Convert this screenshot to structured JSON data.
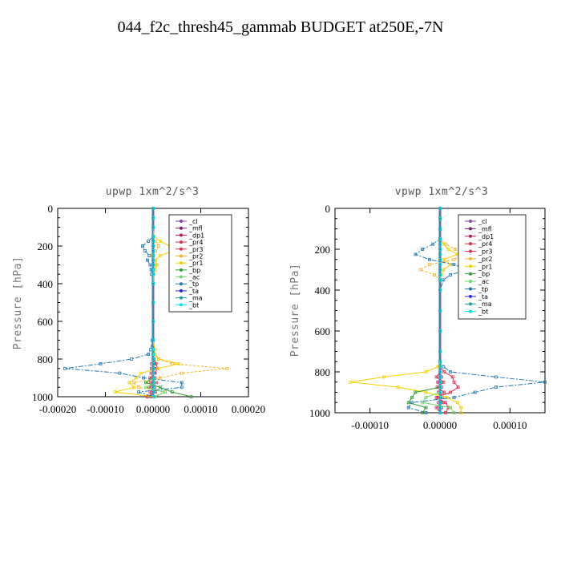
{
  "figure_title": "044_f2c_thresh45_gammab  BUDGET at250E,-7N",
  "colors": {
    "_cl": "#8e44ad",
    "_mfl": "#7a1f6f",
    "_dp1": "#c0185c",
    "_pr4": "#d9304a",
    "_pr3": "#e8304a",
    "_pr2": "#f7b32b",
    "_pr1": "#f5d000",
    "_bp": "#2e9e2e",
    "_ac": "#6cd96c",
    "_tp": "#1f78b4",
    "_ta": "#2b2bd9",
    "_ma": "#1aa0a0",
    "_bt": "#00e5ee"
  },
  "chart_data": [
    {
      "type": "line",
      "title": "upwp  1xm^2/s^3",
      "ylabel": "Pressure [hPa]",
      "xlabel": "",
      "xlim": [
        -0.0002,
        0.0002
      ],
      "ylim": [
        1000,
        0
      ],
      "xticks": [
        "-0.00020",
        "-0.00010",
        "0.00000",
        "0.00010",
        "0.00020"
      ],
      "xtick_values": [
        -0.0002,
        -0.0001,
        0,
        0.0001,
        0.0002
      ],
      "yticks": [
        "0",
        "200",
        "400",
        "600",
        "800",
        "1000"
      ],
      "ytick_values": [
        0,
        200,
        400,
        600,
        800,
        1000
      ],
      "legend": [
        "_cl",
        "_mfl",
        "_dp1",
        "_pr4",
        "_pr3",
        "_pr2",
        "_pr1",
        "_bp",
        "_ac",
        "_tp",
        "_ta",
        "_ma",
        "_bt"
      ],
      "legend_position": "top-right",
      "pressure": [
        0,
        50,
        100,
        150,
        175,
        200,
        225,
        250,
        275,
        300,
        325,
        350,
        400,
        500,
        600,
        700,
        750,
        775,
        800,
        825,
        850,
        875,
        900,
        925,
        950,
        975,
        1000
      ],
      "series": [
        {
          "name": "_cl",
          "values": [
            0,
            0,
            0,
            0,
            0,
            0,
            0,
            0,
            0,
            0,
            0,
            0,
            0,
            0,
            0,
            0,
            0,
            0,
            0,
            0,
            0,
            0,
            0,
            0,
            0,
            0,
            0
          ]
        },
        {
          "name": "_mfl",
          "values": [
            0,
            0,
            0,
            0,
            0,
            0,
            0,
            0,
            0,
            0,
            0,
            0,
            0,
            0,
            0,
            0,
            0,
            0,
            0,
            0,
            0,
            0,
            0,
            0,
            0,
            0,
            0
          ]
        },
        {
          "name": "_dp1",
          "values": [
            0,
            0,
            0,
            0,
            0,
            0,
            0,
            0,
            0,
            0,
            0,
            0,
            0,
            0,
            0,
            0,
            0,
            0,
            0,
            2e-06,
            -3e-06,
            3e-06,
            -2e-06,
            2e-06,
            -3e-06,
            2e-06,
            -1e-06
          ]
        },
        {
          "name": "_pr4",
          "values": [
            0,
            0,
            0,
            0,
            0,
            0,
            0,
            0,
            0,
            0,
            0,
            0,
            0,
            0,
            0,
            0,
            0,
            0,
            0,
            -3e-06,
            5e-06,
            -4e-06,
            4e-06,
            -5e-06,
            3e-06,
            -6e-06,
            -4e-06
          ]
        },
        {
          "name": "_pr3",
          "values": [
            0,
            0,
            0,
            0,
            0,
            0,
            0,
            0,
            0,
            0,
            0,
            0,
            0,
            0,
            0,
            0,
            0,
            0,
            2e-06,
            6e-06,
            9e-06,
            4e-06,
            -6e-06,
            7e-06,
            -8e-06,
            5e-06,
            -1.2e-05
          ]
        },
        {
          "name": "_pr2",
          "values": [
            0,
            0,
            0,
            0,
            5e-06,
            1.2e-05,
            5e-06,
            -2e-06,
            3e-06,
            6e-06,
            2e-06,
            0,
            0,
            0,
            0,
            0,
            2e-06,
            4e-06,
            1.2e-05,
            4e-05,
            0.000155,
            6e-05,
            1.5e-05,
            -4e-05,
            -3e-05,
            2.5e-05,
            0
          ]
        },
        {
          "name": "_pr1",
          "values": [
            0,
            0,
            0,
            2e-06,
            1.5e-05,
            3.5e-05,
            4.5e-05,
            1.5e-05,
            5e-06,
            8e-06,
            4e-06,
            2e-06,
            0,
            0,
            0,
            0,
            4e-06,
            2e-06,
            1.2e-05,
            5.5e-05,
            1e-05,
            -2.5e-05,
            -3.5e-05,
            -5e-05,
            -4e-05,
            -8e-05,
            0
          ]
        },
        {
          "name": "_bp",
          "values": [
            0,
            0,
            0,
            0,
            0,
            0,
            0,
            0,
            0,
            0,
            0,
            0,
            0,
            0,
            0,
            0,
            0,
            0,
            0,
            0,
            0,
            0,
            0,
            -1.5e-05,
            1.5e-05,
            4e-05,
            8e-05
          ]
        },
        {
          "name": "_ac",
          "values": [
            0,
            0,
            0,
            0,
            0,
            0,
            0,
            0,
            0,
            0,
            0,
            0,
            0,
            0,
            0,
            0,
            0,
            0,
            0,
            0,
            0,
            0,
            0,
            5e-06,
            -1.5e-05,
            2.5e-05,
            5e-06
          ]
        },
        {
          "name": "_tp",
          "values": [
            0,
            0,
            0,
            0,
            -1e-05,
            -2.2e-05,
            -1.7e-05,
            -8e-06,
            -1.2e-05,
            -6e-06,
            -4e-06,
            -3e-06,
            0,
            0,
            0,
            -2e-06,
            -5e-06,
            -1e-05,
            -4.5e-05,
            -0.00011,
            -0.000185,
            -7e-05,
            -2e-05,
            6e-05,
            6e-05,
            -3e-05,
            0
          ]
        },
        {
          "name": "_ta",
          "values": [
            0,
            0,
            0,
            0,
            0,
            0,
            0,
            0,
            0,
            0,
            0,
            0,
            0,
            0,
            0,
            0,
            0,
            0,
            0,
            0,
            0,
            0,
            0,
            0,
            0,
            0,
            0
          ]
        },
        {
          "name": "_ma",
          "values": [
            0,
            0,
            0,
            0,
            0,
            0,
            0,
            0,
            0,
            0,
            0,
            0,
            0,
            0,
            0,
            0,
            0,
            0,
            0,
            0,
            0,
            0,
            0,
            0,
            0,
            0,
            0
          ]
        },
        {
          "name": "_bt",
          "values": [
            0,
            0,
            0,
            0,
            0,
            0,
            0,
            0,
            0,
            0,
            0,
            0,
            0,
            0,
            0,
            0,
            0,
            0,
            0,
            0,
            0,
            0,
            0,
            0,
            0,
            0,
            0
          ]
        }
      ]
    },
    {
      "type": "line",
      "title": "vpwp  1xm^2/s^3",
      "ylabel": "Pressure [hPa]",
      "xlabel": "",
      "xlim": [
        -0.00015,
        0.00015
      ],
      "ylim": [
        1000,
        0
      ],
      "xticks": [
        "-0.00010",
        "0.00000",
        "0.00010"
      ],
      "xtick_values": [
        -0.0001,
        0,
        0.0001
      ],
      "yticks": [
        "0",
        "200",
        "400",
        "600",
        "800",
        "1000"
      ],
      "ytick_values": [
        0,
        200,
        400,
        600,
        800,
        1000
      ],
      "legend": [
        "_cl",
        "_mfl",
        "_dp1",
        "_pr4",
        "_pr3",
        "_pr2",
        "_pr1",
        "_bp",
        "_ac",
        "_tp",
        "_ta",
        "_ma",
        "_bt"
      ],
      "legend_position": "top-right",
      "pressure": [
        0,
        50,
        100,
        150,
        175,
        200,
        225,
        250,
        275,
        300,
        325,
        350,
        400,
        500,
        600,
        700,
        750,
        775,
        800,
        825,
        850,
        875,
        900,
        925,
        950,
        975,
        1000
      ],
      "series": [
        {
          "name": "_cl",
          "values": [
            0,
            0,
            0,
            0,
            0,
            0,
            0,
            0,
            0,
            0,
            0,
            0,
            0,
            0,
            0,
            0,
            0,
            0,
            0,
            0,
            0,
            0,
            0,
            0,
            0,
            0,
            0
          ]
        },
        {
          "name": "_mfl",
          "values": [
            0,
            0,
            0,
            0,
            0,
            0,
            0,
            0,
            0,
            0,
            0,
            0,
            0,
            0,
            0,
            0,
            0,
            0,
            0,
            0,
            0,
            0,
            0,
            0,
            0,
            0,
            0
          ]
        },
        {
          "name": "_dp1",
          "values": [
            0,
            0,
            0,
            0,
            0,
            0,
            0,
            0,
            0,
            0,
            0,
            0,
            0,
            0,
            0,
            0,
            0,
            0,
            0,
            2e-06,
            -3e-06,
            2e-06,
            -2e-06,
            3e-06,
            -2e-06,
            2e-06,
            0
          ]
        },
        {
          "name": "_pr4",
          "values": [
            0,
            0,
            0,
            0,
            0,
            0,
            0,
            0,
            0,
            0,
            0,
            0,
            0,
            0,
            0,
            0,
            0,
            0,
            0,
            -5e-06,
            5e-06,
            -4e-06,
            6e-06,
            -3e-06,
            4e-06,
            -5e-06,
            0
          ]
        },
        {
          "name": "_pr3",
          "values": [
            0,
            0,
            0,
            0,
            0,
            0,
            0,
            0,
            0,
            0,
            0,
            0,
            0,
            0,
            0,
            0,
            0,
            0,
            6e-06,
            1.8e-05,
            2e-05,
            2.6e-05,
            1.5e-05,
            -5e-06,
            8e-06,
            1.2e-05,
            8e-06
          ]
        },
        {
          "name": "_pr2",
          "values": [
            0,
            0,
            0,
            0,
            8e-06,
            2.2e-05,
            3.5e-05,
            2e-05,
            -1.5e-05,
            -2.8e-05,
            -8e-06,
            0,
            0,
            0,
            0,
            0,
            0,
            0,
            0,
            0,
            0,
            0,
            0,
            0,
            0,
            0,
            0
          ]
        },
        {
          "name": "_pr1",
          "values": [
            0,
            0,
            0,
            0,
            5e-06,
            1.2e-05,
            2.5e-05,
            5e-06,
            1.5e-05,
            5e-06,
            2e-06,
            0,
            0,
            0,
            0,
            0,
            0,
            -3e-06,
            -2e-05,
            -8e-05,
            -0.000128,
            -6e-05,
            -2e-05,
            1e-05,
            2.5e-05,
            3e-05,
            3e-05
          ]
        },
        {
          "name": "_bp",
          "values": [
            0,
            0,
            0,
            0,
            0,
            0,
            0,
            0,
            0,
            0,
            0,
            0,
            0,
            0,
            0,
            0,
            0,
            0,
            0,
            0,
            0,
            0,
            -3.5e-05,
            -4e-05,
            -4.5e-05,
            -2e-05,
            -2.5e-05
          ]
        },
        {
          "name": "_ac",
          "values": [
            0,
            0,
            0,
            0,
            0,
            0,
            0,
            0,
            0,
            0,
            0,
            0,
            0,
            0,
            0,
            0,
            0,
            0,
            0,
            0,
            0,
            0,
            0,
            -2e-05,
            -2.5e-05,
            1.5e-05,
            2e-05
          ]
        },
        {
          "name": "_tp",
          "values": [
            0,
            0,
            0,
            0,
            -1e-05,
            -2.5e-05,
            -3.5e-05,
            -1.5e-05,
            2e-05,
            4e-05,
            1.5e-05,
            5e-06,
            0,
            0,
            0,
            0,
            0,
            5e-06,
            1.5e-05,
            8e-05,
            0.00015,
            8e-05,
            5e-05,
            2e-05,
            -4e-05,
            -4.5e-05,
            -2e-05
          ]
        },
        {
          "name": "_ta",
          "values": [
            0,
            0,
            0,
            0,
            0,
            0,
            0,
            0,
            0,
            0,
            0,
            0,
            0,
            0,
            0,
            0,
            0,
            0,
            0,
            0,
            0,
            0,
            0,
            0,
            0,
            0,
            0
          ]
        },
        {
          "name": "_ma",
          "values": [
            0,
            0,
            0,
            0,
            0,
            0,
            0,
            0,
            0,
            0,
            0,
            0,
            0,
            0,
            0,
            0,
            0,
            0,
            0,
            0,
            0,
            0,
            0,
            0,
            0,
            0,
            0
          ]
        },
        {
          "name": "_bt",
          "values": [
            0,
            0,
            0,
            0,
            0,
            0,
            0,
            0,
            0,
            0,
            0,
            0,
            0,
            0,
            0,
            0,
            0,
            0,
            0,
            0,
            0,
            0,
            0,
            0,
            0,
            0,
            0
          ]
        }
      ]
    }
  ]
}
